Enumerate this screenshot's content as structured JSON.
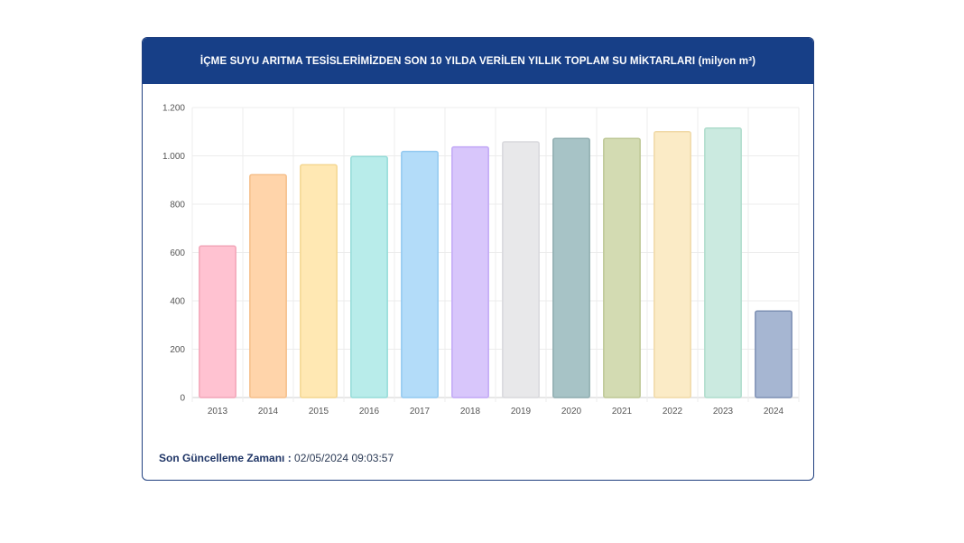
{
  "header": {
    "title": "İÇME SUYU ARITMA TESİSLERİMİZDEN SON 10 YILDA VERİLEN YILLIK TOPLAM SU MİKTARLARI (milyon m³)"
  },
  "footer": {
    "label": "Son Güncelleme Zamanı :",
    "value": "02/05/2024 09:03:57"
  },
  "chart_data": {
    "type": "bar",
    "title": "İÇME SUYU ARITMA TESİSLERİMİZDEN SON 10 YILDA VERİLEN YILLIK TOPLAM SU MİKTARLARI (milyon m³)",
    "xlabel": "",
    "ylabel": "",
    "ylim": [
      0,
      1200
    ],
    "yticks": [
      0,
      200,
      400,
      600,
      800,
      1000,
      1200
    ],
    "ytick_labels": [
      "0",
      "200",
      "400",
      "600",
      "800",
      "1.000",
      "1.200"
    ],
    "grid": true,
    "categories": [
      "2013",
      "2014",
      "2015",
      "2016",
      "2017",
      "2018",
      "2019",
      "2020",
      "2021",
      "2022",
      "2023",
      "2024"
    ],
    "values": [
      627,
      922,
      963,
      997,
      1018,
      1037,
      1058,
      1072,
      1072,
      1100,
      1115,
      358
    ],
    "colors": [
      "#ffc2d1",
      "#ffd4aa",
      "#ffe8b3",
      "#b8ecea",
      "#b3dcf9",
      "#d8c6fb",
      "#e8e8ea",
      "#a7c3c6",
      "#d3dbb2",
      "#fbebc6",
      "#cbeae0",
      "#a6b6d2"
    ],
    "border_colors": [
      "#f2a5b8",
      "#f5bf8a",
      "#f4d690",
      "#95dcd8",
      "#92c9f0",
      "#c1a7f6",
      "#d8d8dc",
      "#8eacaf",
      "#bdc795",
      "#f0d9a6",
      "#aedccc",
      "#7c8fb3"
    ]
  }
}
